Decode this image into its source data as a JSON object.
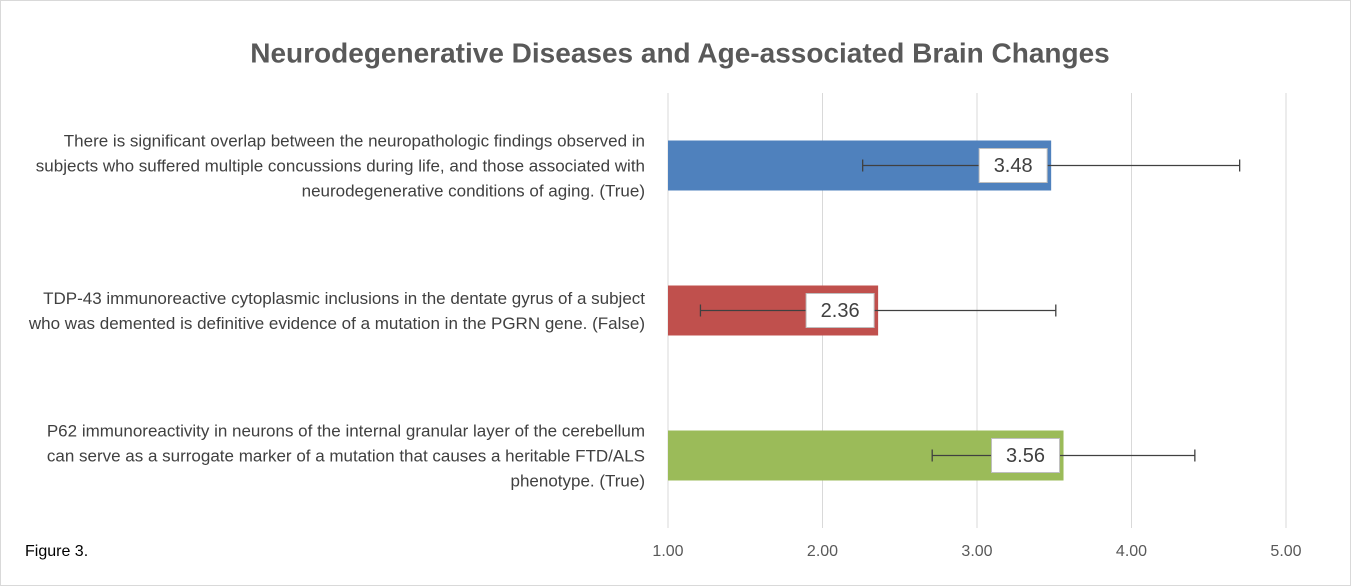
{
  "chart_data": {
    "type": "hbar",
    "title": "Neurodegenerative Diseases and Age-associated Brain Changes",
    "caption": "Figure 3.",
    "categories": [
      "There is significant overlap between the neuropathologic findings observed in subjects who suffered multiple concussions during life, and those associated with neurodegenerative conditions of aging. (True)",
      "TDP-43 immunoreactive cytoplasmic inclusions in the dentate gyrus of a subject who was demented is definitive evidence of a mutation in the PGRN gene. (False)",
      "P62 immunoreactivity in neurons of the internal granular layer of the cerebellum can serve as a surrogate marker of a mutation that causes a heritable FTD/ALS phenotype. (True)"
    ],
    "values": [
      3.48,
      2.36,
      3.56
    ],
    "errors": [
      1.22,
      1.15,
      0.85
    ],
    "colors": [
      "#4f81bd",
      "#c0504d",
      "#9bbb59"
    ],
    "xlim": [
      1,
      5
    ],
    "xticks": [
      {
        "value": 1,
        "label": "1.00"
      },
      {
        "value": 2,
        "label": "2.00"
      },
      {
        "value": 3,
        "label": "3.00"
      },
      {
        "value": 4,
        "label": "4.00"
      },
      {
        "value": 5,
        "label": "5.00"
      }
    ],
    "grid": true
  }
}
